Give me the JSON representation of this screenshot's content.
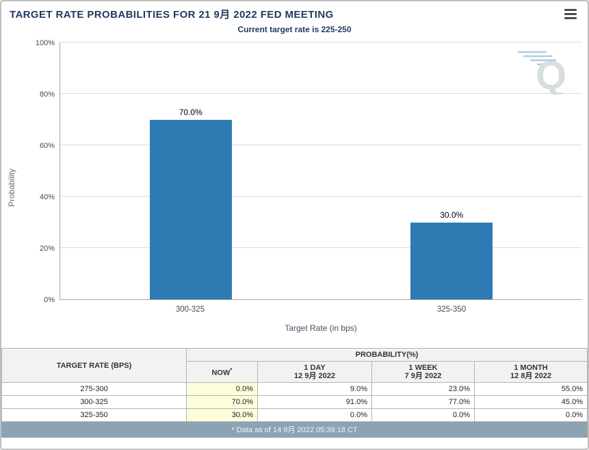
{
  "header": {
    "title": "TARGET RATE PROBABILITIES FOR 21 9月 2022 FED MEETING",
    "subtitle": "Current target rate is 225-250",
    "menu_icon": "hamburger-icon"
  },
  "colors": {
    "bar": "#2d7bb2",
    "now_highlight": "#fdfddc",
    "footer_bg": "#8ca3b3",
    "title_text": "#1d3a5f"
  },
  "chart_data": {
    "type": "bar",
    "categories": [
      "300-325",
      "325-350"
    ],
    "values": [
      70.0,
      30.0
    ],
    "bar_labels": [
      "70.0%",
      "30.0%"
    ],
    "title": "",
    "xlabel": "Target Rate (in bps)",
    "ylabel": "Probability",
    "ylim": [
      0,
      100
    ],
    "yticks": [
      "0%",
      "20%",
      "40%",
      "60%",
      "80%",
      "100%"
    ],
    "grid": true,
    "legend": "none",
    "watermark": "Q"
  },
  "table": {
    "first_col_header": "TARGET RATE (BPS)",
    "group_header": "PROBABILITY(%)",
    "columns": [
      {
        "label": "NOW",
        "sup": "*",
        "date": ""
      },
      {
        "label": "1 DAY",
        "date": "12 9月 2022"
      },
      {
        "label": "1 WEEK",
        "date": "7 9月 2022"
      },
      {
        "label": "1 MONTH",
        "date": "12 8月 2022"
      }
    ],
    "rows": [
      [
        "275-300",
        "0.0%",
        "9.0%",
        "23.0%",
        "55.0%"
      ],
      [
        "300-325",
        "70.0%",
        "91.0%",
        "77.0%",
        "45.0%"
      ],
      [
        "325-350",
        "30.0%",
        "0.0%",
        "0.0%",
        "0.0%"
      ]
    ],
    "footnote": "* Data as of 14 9月 2022 05:39:18 CT"
  }
}
